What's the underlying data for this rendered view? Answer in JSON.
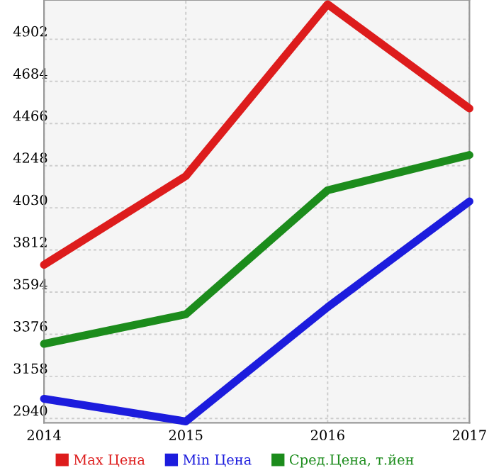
{
  "chart_data": {
    "type": "line",
    "x": [
      2014,
      2015,
      2016,
      2017
    ],
    "series": [
      {
        "name": "Max Цена",
        "color": "#dd1c1c",
        "values": [
          3735,
          4194,
          5083,
          4544
        ]
      },
      {
        "name": "Min Цена",
        "color": "#1c1cdd",
        "values": [
          3042,
          2925,
          3516,
          4063
        ]
      },
      {
        "name": "Сред.Цена, т.йен",
        "color": "#1c8c1c",
        "values": [
          3326,
          3479,
          4121,
          4303
        ]
      }
    ],
    "xlim": [
      2014,
      2017
    ],
    "xticks": [
      2014,
      2015,
      2016,
      2017
    ],
    "ylim": [
      2918,
      5105
    ],
    "yticks": [
      2940,
      3158,
      3376,
      3594,
      3812,
      4030,
      4248,
      4466,
      4684,
      4902
    ],
    "grid": true,
    "legend": "bottom",
    "marker": "none",
    "line_style": "solid"
  }
}
